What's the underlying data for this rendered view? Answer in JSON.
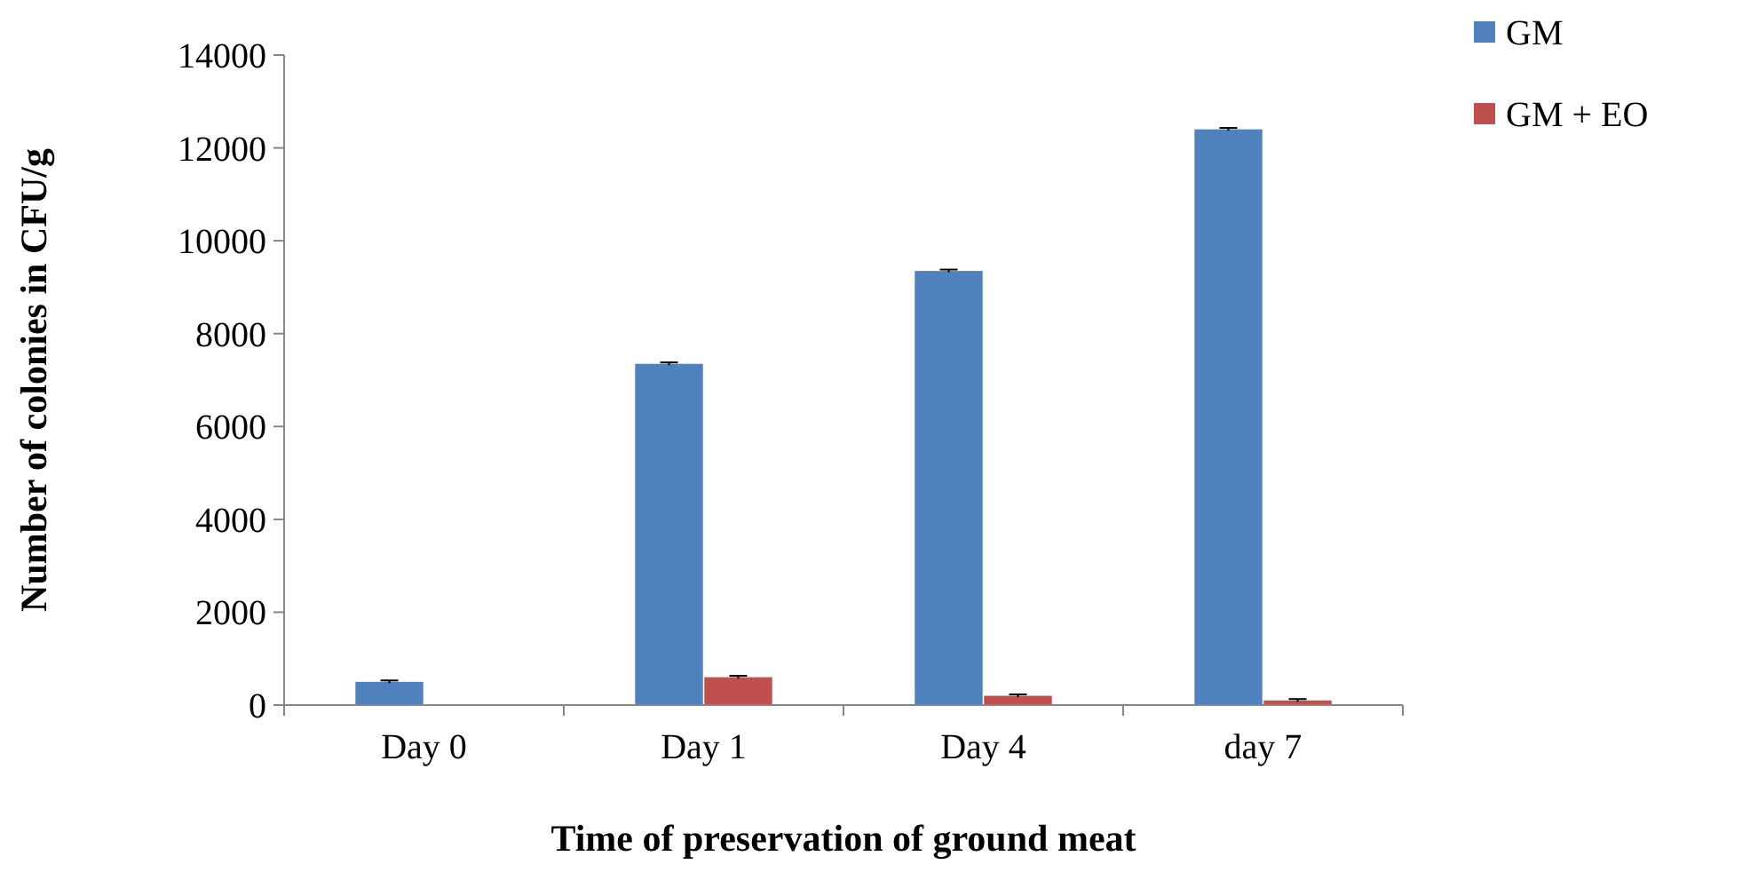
{
  "chart_data": {
    "type": "bar",
    "xlabel": "Time of preservation of ground  meat",
    "ylabel": "Number  of colonies in CFU/g",
    "categories": [
      "Day 0",
      "Day 1",
      "Day 4",
      "day 7"
    ],
    "series": [
      {
        "name": "GM",
        "color": "#4f81bd",
        "values": [
          500,
          7350,
          9350,
          12400
        ],
        "errors": [
          30,
          30,
          30,
          30
        ]
      },
      {
        "name": "GM + EO",
        "color": "#c0504d",
        "values": [
          0,
          600,
          200,
          100
        ],
        "errors": [
          null,
          30,
          30,
          30
        ]
      }
    ],
    "ylim": [
      0,
      14000
    ],
    "yticks": [
      0,
      2000,
      4000,
      6000,
      8000,
      10000,
      12000,
      14000
    ],
    "grid": false,
    "legend": "top right"
  }
}
